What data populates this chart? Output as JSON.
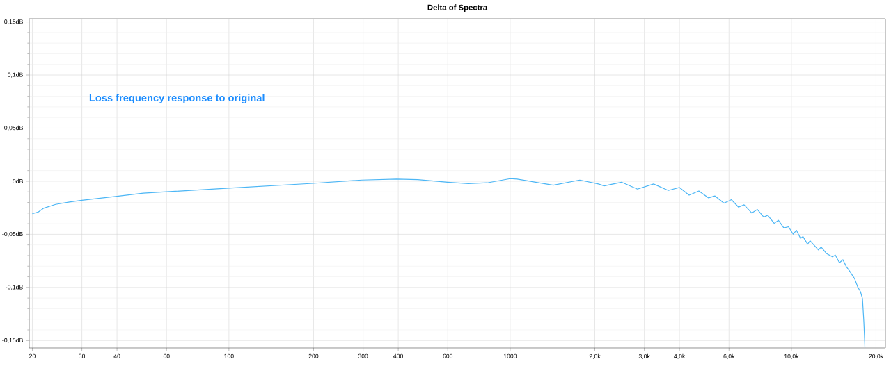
{
  "chart_data": {
    "type": "line",
    "title": "Delta of Spectra",
    "annotations": [
      "Loss frequency response to original"
    ],
    "x": [
      20,
      21,
      21.9,
      24.2,
      27.1,
      30,
      40,
      49.6,
      60,
      100,
      199,
      297,
      395,
      469,
      599,
      710,
      829,
      1000,
      1059,
      1424,
      1768,
      2061,
      2158,
      2488,
      2836,
      3237,
      3651,
      4000,
      4329,
      4688,
      5075,
      5350,
      5760,
      6121,
      6488,
      6790,
      7230,
      7570,
      7980,
      8240,
      8690,
      8990,
      9400,
      9770,
      10150,
      10420,
      10780,
      11000,
      11420,
      11650,
      12480,
      12760,
      13320,
      14000,
      14330,
      14820,
      15250,
      15680,
      16130,
      16800,
      17220,
      17600,
      17900,
      18100,
      18270
    ],
    "values": [
      -0.0305,
      -0.029,
      -0.0255,
      -0.0218,
      -0.0196,
      -0.0179,
      -0.0142,
      -0.0113,
      -0.01,
      -0.0065,
      -0.002,
      0.0011,
      0.002,
      0.0015,
      -0.0009,
      -0.0022,
      -0.0015,
      0.0024,
      0.002,
      -0.0037,
      0.0011,
      -0.0026,
      -0.0044,
      -0.0009,
      -0.0074,
      -0.0026,
      -0.0087,
      -0.0059,
      -0.0131,
      -0.0092,
      -0.0157,
      -0.0139,
      -0.0207,
      -0.0174,
      -0.0244,
      -0.0222,
      -0.0299,
      -0.0266,
      -0.0338,
      -0.032,
      -0.0397,
      -0.0368,
      -0.044,
      -0.0429,
      -0.0499,
      -0.0462,
      -0.0538,
      -0.0521,
      -0.0593,
      -0.056,
      -0.0647,
      -0.0619,
      -0.068,
      -0.0712,
      -0.0695,
      -0.0767,
      -0.0739,
      -0.0804,
      -0.0848,
      -0.092,
      -0.0996,
      -0.1039,
      -0.1105,
      -0.1322,
      -0.157
    ],
    "color": "#4cb6f5",
    "log": "x",
    "grid": true,
    "xlim": [
      19.5,
      21600
    ],
    "ylim": [
      -0.157,
      0.153
    ],
    "xticks": [
      20,
      30,
      40,
      60,
      100,
      200,
      300,
      400,
      600,
      1000,
      {
        "value": 2000,
        "label": "2,0k"
      },
      {
        "value": 3000,
        "label": "3,0k"
      },
      {
        "value": 4000,
        "label": "4,0k"
      },
      {
        "value": 6000,
        "label": "6,0k"
      },
      {
        "value": 10000,
        "label": "10,0k"
      },
      {
        "value": 20000,
        "label": "20,0k"
      }
    ],
    "yticks": [
      {
        "value": -0.15,
        "label": "-0,15dB"
      },
      {
        "value": -0.1,
        "label": "-0,1dB"
      },
      {
        "value": -0.05,
        "label": "-0,05dB"
      },
      {
        "value": 0,
        "label": "0dB"
      },
      {
        "value": 0.05,
        "label": "0,05dB"
      },
      {
        "value": 0.1,
        "label": "0,1dB"
      },
      {
        "value": 0.15,
        "label": "0,15dB"
      }
    ]
  }
}
